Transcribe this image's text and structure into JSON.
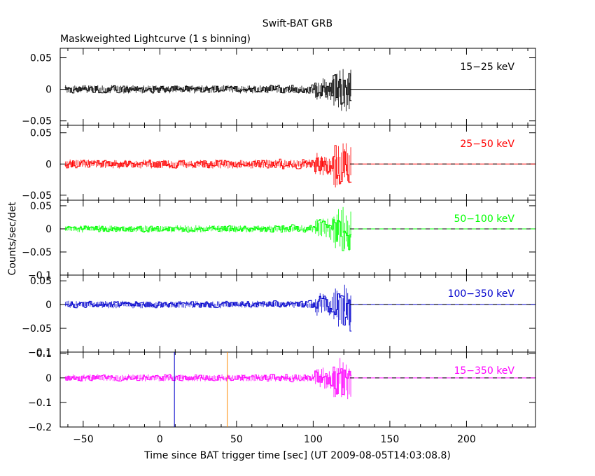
{
  "chart_data": {
    "type": "line",
    "title": "Swift-BAT GRB",
    "subtitle": "Maskweighted Lightcurve (1 s binning)",
    "xlabel": "Time since BAT trigger time [sec] (UT 2009-08-05T14:03:08.8)",
    "ylabel": "Counts/sec/det",
    "xlim": [
      -65,
      245
    ],
    "x_ticks": [
      -50,
      0,
      50,
      100,
      150,
      200
    ],
    "x_tick_labels": [
      "−50",
      "0",
      "50",
      "100",
      "150",
      "200"
    ],
    "grid": false,
    "data_end_time": 124,
    "panels": [
      {
        "label": "15−25 keV",
        "color": "#000000",
        "ylim": [
          -0.057,
          0.065
        ],
        "y_ticks": [
          0.05,
          0,
          -0.05
        ],
        "y_tick_labels": [
          "0.05",
          "0",
          "−0.05"
        ],
        "noise_amp": 0.0055,
        "late_amp": 0.03,
        "dip": false
      },
      {
        "label": "25−50 keV",
        "color": "#ff0000",
        "ylim": [
          -0.058,
          0.062
        ],
        "y_ticks": [
          0.05,
          0,
          -0.05
        ],
        "y_tick_labels": [
          "0.05",
          "0",
          "−0.05"
        ],
        "noise_amp": 0.006,
        "late_amp": 0.032,
        "dip": false
      },
      {
        "label": "50−100 keV",
        "color": "#00ff00",
        "ylim": [
          -0.1,
          0.062
        ],
        "y_ticks": [
          0.05,
          0,
          -0.05,
          -0.1
        ],
        "y_tick_labels": [
          "0.05",
          "0",
          "−0.05",
          "−0.1"
        ],
        "noise_amp": 0.0065,
        "late_amp": 0.04,
        "dip": true
      },
      {
        "label": "100−350 keV",
        "color": "#0000cc",
        "ylim": [
          -0.1,
          0.062
        ],
        "y_ticks": [
          0.05,
          0,
          -0.05,
          -0.1
        ],
        "y_tick_labels": [
          "0.05",
          "0",
          "−0.05",
          "−0.1"
        ],
        "noise_amp": 0.0065,
        "late_amp": 0.04,
        "dip": true
      },
      {
        "label": "15−350 keV",
        "color": "#ff00ff",
        "ylim": [
          -0.2,
          0.105
        ],
        "y_ticks": [
          0.1,
          0,
          -0.1,
          -0.2
        ],
        "y_tick_labels": [
          "0.1",
          "0",
          "−0.1",
          "−0.2"
        ],
        "noise_amp": 0.012,
        "late_amp": 0.075,
        "dip": false
      }
    ],
    "markers": [
      {
        "x": 9.5,
        "color": "#0000cc"
      },
      {
        "x": 44,
        "color": "#ff8800"
      }
    ]
  }
}
